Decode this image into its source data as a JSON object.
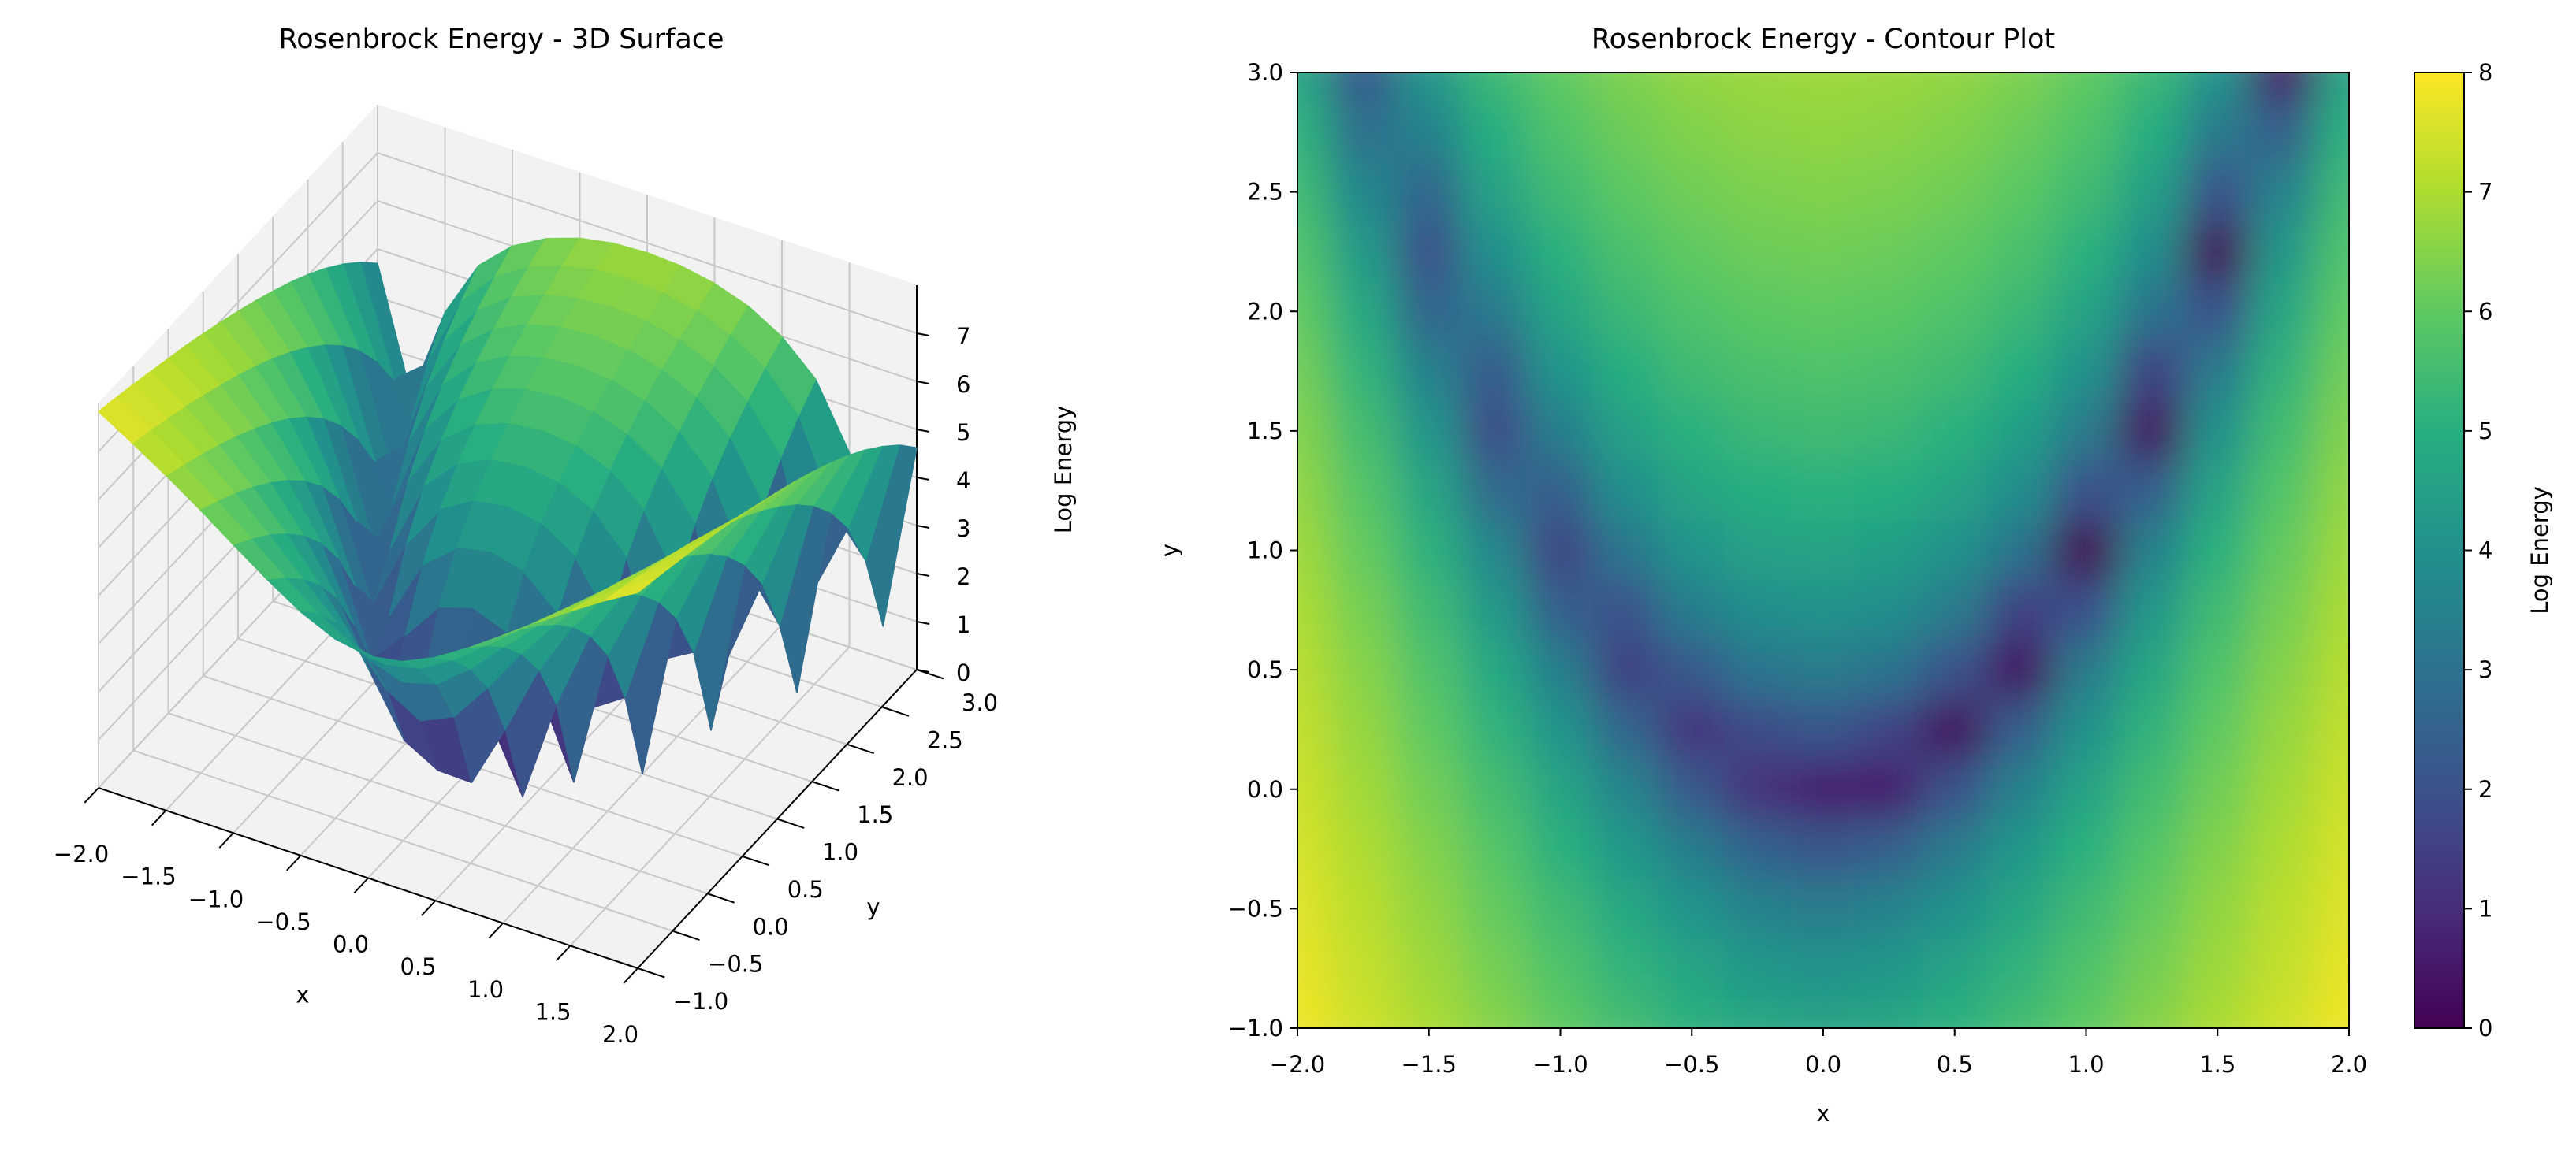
{
  "chart_data": [
    {
      "type": "surface",
      "title": "Rosenbrock Energy - 3D Surface",
      "xlabel": "x",
      "ylabel": "y",
      "zlabel": "Log Energy",
      "colormap": "viridis",
      "xlim": [
        -2,
        2
      ],
      "ylim": [
        -1,
        3
      ],
      "zlim": [
        0,
        8
      ],
      "xticks": [
        {
          "value": -2,
          "label": "−2.0"
        },
        {
          "value": -1.5,
          "label": "−1.5"
        },
        {
          "value": -1,
          "label": "−1.0"
        },
        {
          "value": -0.5,
          "label": "−0.5"
        },
        {
          "value": 0,
          "label": "0.0"
        },
        0.5,
        {
          "value": 1,
          "label": "1.0"
        },
        1.5,
        {
          "value": 2,
          "label": "2.0"
        }
      ],
      "yticks": [
        {
          "value": -1,
          "label": "−1.0"
        },
        {
          "value": -0.5,
          "label": "−0.5"
        },
        {
          "value": 0,
          "label": "0.0"
        },
        0.5,
        {
          "value": 1,
          "label": "1.0"
        },
        1.5,
        {
          "value": 2,
          "label": "2.0"
        },
        2.5,
        {
          "value": 3,
          "label": "3.0"
        }
      ],
      "zticks": [
        0,
        1,
        2,
        3,
        4,
        5,
        6,
        7
      ],
      "x": [
        -2,
        -1.75,
        -1.5,
        -1.25,
        -1,
        -0.75,
        -0.5,
        -0.25,
        0,
        0.25,
        0.5,
        0.75,
        1,
        1.25,
        1.5,
        1.75,
        2
      ],
      "y": [
        -1,
        -0.75,
        -0.5,
        -0.25,
        0,
        0.25,
        0.5,
        0.75,
        1,
        1.25,
        1.5,
        1.75,
        2,
        2.25,
        2.5,
        2.75,
        3
      ],
      "z": [
        [
          7.83,
          7.41,
          6.97,
          6.5,
          6.0,
          5.51,
          5.07,
          4.75,
          4.62,
          4.74,
          5.06,
          5.5,
          5.99,
          6.49,
          6.96,
          7.41,
          7.82
        ],
        [
          7.73,
          7.29,
          6.81,
          6.29,
          5.74,
          5.17,
          4.64,
          4.23,
          4.06,
          4.21,
          4.62,
          5.16,
          5.73,
          6.28,
          6.8,
          7.28,
          7.72
        ],
        [
          7.62,
          7.15,
          6.64,
          6.07,
          5.44,
          4.76,
          4.09,
          3.53,
          3.3,
          3.5,
          4.05,
          4.74,
          5.42,
          6.06,
          6.63,
          7.15,
          7.61
        ],
        [
          7.5,
          7.01,
          6.45,
          5.81,
          5.08,
          4.25,
          3.34,
          2.51,
          2.11,
          2.43,
          3.27,
          4.21,
          5.06,
          5.8,
          6.44,
          7.0,
          7.5
        ],
        [
          7.38,
          6.85,
          6.24,
          5.52,
          4.65,
          3.58,
          2.25,
          1.08,
          0.69,
          0.67,
          2.01,
          3.49,
          4.62,
          5.5,
          6.23,
          6.85,
          7.38
        ],
        [
          7.26,
          6.68,
          6.01,
          5.18,
          4.11,
          2.63,
          1.18,
          1.81,
          2.11,
          1.63,
          0.22,
          2.38,
          4.05,
          5.16,
          6.0,
          6.68,
          7.25
        ],
        [
          7.12,
          6.5,
          5.75,
          4.78,
          3.4,
          1.49,
          2.25,
          3.08,
          3.3,
          3.03,
          2.01,
          0.37,
          3.26,
          4.74,
          5.73,
          6.49,
          7.11
        ],
        [
          6.97,
          6.3,
          5.45,
          4.28,
          2.42,
          2.03,
          3.34,
          3.91,
          4.06,
          3.89,
          3.27,
          1.52,
          1.98,
          4.21,
          5.42,
          6.28,
          6.96
        ],
        [
          6.81,
          6.07,
          5.1,
          3.63,
          1.61,
          3.14,
          4.09,
          4.5,
          4.62,
          4.49,
          4.05,
          3.01,
          0,
          3.49,
          5.06,
          6.06,
          6.8
        ],
        [
          6.64,
          5.82,
          4.68,
          2.76,
          2.42,
          3.94,
          4.64,
          4.97,
          5.06,
          4.96,
          4.62,
          3.88,
          1.98,
          2.38,
          4.62,
          5.8,
          6.63
        ],
        [
          6.45,
          5.53,
          4.15,
          1.86,
          3.4,
          4.52,
          5.07,
          5.34,
          5.42,
          5.34,
          5.06,
          4.49,
          3.26,
          0.37,
          4.05,
          5.5,
          6.44
        ],
        [
          6.25,
          5.2,
          3.47,
          2.26,
          4.11,
          4.98,
          5.43,
          5.66,
          5.73,
          5.66,
          5.42,
          4.96,
          4.05,
          1.52,
          3.27,
          5.16,
          6.23
        ],
        [
          6.02,
          4.8,
          2.6,
          3.23,
          4.65,
          5.35,
          5.73,
          5.93,
          6.0,
          5.93,
          5.73,
          5.34,
          4.62,
          3.01,
          2.01,
          4.74,
          6.0
        ],
        [
          5.76,
          4.31,
          1.98,
          3.98,
          5.08,
          5.67,
          6.0,
          6.18,
          6.23,
          6.17,
          6.0,
          5.66,
          5.06,
          3.88,
          0.22,
          4.21,
          5.73
        ],
        [
          5.46,
          3.69,
          2.6,
          4.54,
          5.44,
          5.94,
          6.23,
          6.39,
          6.44,
          6.39,
          6.23,
          5.93,
          5.42,
          4.49,
          2.01,
          3.5,
          5.42
        ],
        [
          5.11,
          2.91,
          3.47,
          4.99,
          5.74,
          6.18,
          6.44,
          6.59,
          6.63,
          6.58,
          6.44,
          6.17,
          5.73,
          4.96,
          3.27,
          2.43,
          5.06
        ],
        [
          4.7,
          2.19,
          4.15,
          5.36,
          6.0,
          6.39,
          6.63,
          6.76,
          6.8,
          6.76,
          6.63,
          6.39,
          5.99,
          5.34,
          4.05,
          0.67,
          4.62
        ]
      ]
    },
    {
      "type": "contour",
      "title": "Rosenbrock Energy - Contour Plot",
      "xlabel": "x",
      "ylabel": "y",
      "colormap": "viridis",
      "xlim": [
        -2,
        2
      ],
      "ylim": [
        -1,
        3
      ],
      "xticks": [
        {
          "value": -2,
          "label": "−2.0"
        },
        {
          "value": -1.5,
          "label": "−1.5"
        },
        {
          "value": -1,
          "label": "−1.0"
        },
        {
          "value": -0.5,
          "label": "−0.5"
        },
        {
          "value": 0,
          "label": "0.0"
        },
        0.5,
        {
          "value": 1,
          "label": "1.0"
        },
        1.5,
        {
          "value": 2,
          "label": "2.0"
        }
      ],
      "yticks": [
        {
          "value": -1,
          "label": "−1.0"
        },
        {
          "value": -0.5,
          "label": "−0.5"
        },
        {
          "value": 0,
          "label": "0.0"
        },
        0.5,
        {
          "value": 1,
          "label": "1.0"
        },
        1.5,
        {
          "value": 2,
          "label": "2.0"
        },
        2.5,
        {
          "value": 3,
          "label": "3.0"
        }
      ],
      "colorbar": {
        "label": "Log Energy",
        "lim": [
          0,
          8
        ],
        "ticks": [
          0,
          1,
          2,
          3,
          4,
          5,
          6,
          7,
          8
        ]
      },
      "x": [
        -2,
        -1.75,
        -1.5,
        -1.25,
        -1,
        -0.75,
        -0.5,
        -0.25,
        0,
        0.25,
        0.5,
        0.75,
        1,
        1.25,
        1.5,
        1.75,
        2
      ],
      "y": [
        -1,
        -0.75,
        -0.5,
        -0.25,
        0,
        0.25,
        0.5,
        0.75,
        1,
        1.25,
        1.5,
        1.75,
        2,
        2.25,
        2.5,
        2.75,
        3
      ],
      "z": [
        [
          7.83,
          7.41,
          6.97,
          6.5,
          6.0,
          5.51,
          5.07,
          4.75,
          4.62,
          4.74,
          5.06,
          5.5,
          5.99,
          6.49,
          6.96,
          7.41,
          7.82
        ],
        [
          7.73,
          7.29,
          6.81,
          6.29,
          5.74,
          5.17,
          4.64,
          4.23,
          4.06,
          4.21,
          4.62,
          5.16,
          5.73,
          6.28,
          6.8,
          7.28,
          7.72
        ],
        [
          7.62,
          7.15,
          6.64,
          6.07,
          5.44,
          4.76,
          4.09,
          3.53,
          3.3,
          3.5,
          4.05,
          4.74,
          5.42,
          6.06,
          6.63,
          7.15,
          7.61
        ],
        [
          7.5,
          7.01,
          6.45,
          5.81,
          5.08,
          4.25,
          3.34,
          2.51,
          2.11,
          2.43,
          3.27,
          4.21,
          5.06,
          5.8,
          6.44,
          7.0,
          7.5
        ],
        [
          7.38,
          6.85,
          6.24,
          5.52,
          4.65,
          3.58,
          2.25,
          1.08,
          0.69,
          0.67,
          2.01,
          3.49,
          4.62,
          5.5,
          6.23,
          6.85,
          7.38
        ],
        [
          7.26,
          6.68,
          6.01,
          5.18,
          4.11,
          2.63,
          1.18,
          1.81,
          2.11,
          1.63,
          0.22,
          2.38,
          4.05,
          5.16,
          6.0,
          6.68,
          7.25
        ],
        [
          7.12,
          6.5,
          5.75,
          4.78,
          3.4,
          1.49,
          2.25,
          3.08,
          3.3,
          3.03,
          2.01,
          0.37,
          3.26,
          4.74,
          5.73,
          6.49,
          7.11
        ],
        [
          6.97,
          6.3,
          5.45,
          4.28,
          2.42,
          2.03,
          3.34,
          3.91,
          4.06,
          3.89,
          3.27,
          1.52,
          1.98,
          4.21,
          5.42,
          6.28,
          6.96
        ],
        [
          6.81,
          6.07,
          5.1,
          3.63,
          1.61,
          3.14,
          4.09,
          4.5,
          4.62,
          4.49,
          4.05,
          3.01,
          0,
          3.49,
          5.06,
          6.06,
          6.8
        ],
        [
          6.64,
          5.82,
          4.68,
          2.76,
          2.42,
          3.94,
          4.64,
          4.97,
          5.06,
          4.96,
          4.62,
          3.88,
          1.98,
          2.38,
          4.62,
          5.8,
          6.63
        ],
        [
          6.45,
          5.53,
          4.15,
          1.86,
          3.4,
          4.52,
          5.07,
          5.34,
          5.42,
          5.34,
          5.06,
          4.49,
          3.26,
          0.37,
          4.05,
          5.5,
          6.44
        ],
        [
          6.25,
          5.2,
          3.47,
          2.26,
          4.11,
          4.98,
          5.43,
          5.66,
          5.73,
          5.66,
          5.42,
          4.96,
          4.05,
          1.52,
          3.27,
          5.16,
          6.23
        ],
        [
          6.02,
          4.8,
          2.6,
          3.23,
          4.65,
          5.35,
          5.73,
          5.93,
          6.0,
          5.93,
          5.73,
          5.34,
          4.62,
          3.01,
          2.01,
          4.74,
          6.0
        ],
        [
          5.76,
          4.31,
          1.98,
          3.98,
          5.08,
          5.67,
          6.0,
          6.18,
          6.23,
          6.17,
          6.0,
          5.66,
          5.06,
          3.88,
          0.22,
          4.21,
          5.73
        ],
        [
          5.46,
          3.69,
          2.6,
          4.54,
          5.44,
          5.94,
          6.23,
          6.39,
          6.44,
          6.39,
          6.23,
          5.93,
          5.42,
          4.49,
          2.01,
          3.5,
          5.42
        ],
        [
          5.11,
          2.91,
          3.47,
          4.99,
          5.74,
          6.18,
          6.44,
          6.59,
          6.63,
          6.58,
          6.44,
          6.17,
          5.73,
          4.96,
          3.27,
          2.43,
          5.06
        ],
        [
          4.7,
          2.19,
          4.15,
          5.36,
          6.0,
          6.39,
          6.63,
          6.76,
          6.8,
          6.76,
          6.63,
          6.39,
          5.99,
          5.34,
          4.05,
          0.67,
          4.62
        ]
      ]
    }
  ]
}
